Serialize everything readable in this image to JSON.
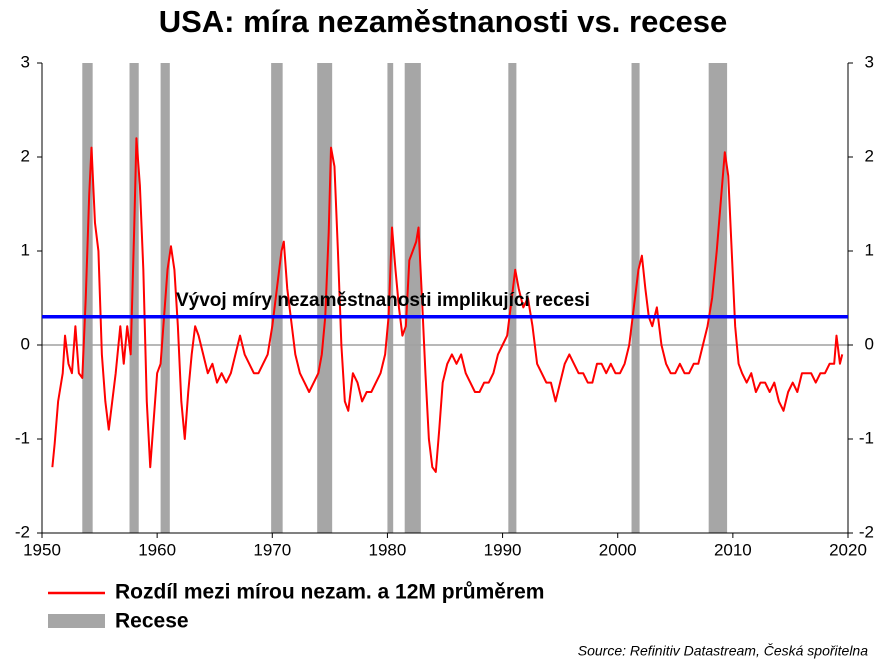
{
  "chart_data": {
    "type": "line",
    "title": "USA: míra nezaměstnanosti vs. recese",
    "source": "Source: Refinitiv Datastream, Česká spořitelna",
    "xlim": [
      1950,
      2020
    ],
    "xticks": [
      1950,
      1960,
      1970,
      1980,
      1990,
      2000,
      2010,
      2020
    ],
    "ylim": [
      -2,
      3
    ],
    "yticks": [
      -2,
      -1,
      0,
      1,
      2,
      3
    ],
    "y2lim": [
      -2,
      3
    ],
    "y2ticks": [
      -2,
      -1,
      0,
      1,
      2,
      3
    ],
    "hline": {
      "value": 0.3,
      "label": "Vývoj míry nezaměstnanosti implikující recesi",
      "color": "#0000ff"
    },
    "recessions": {
      "name": "Recese",
      "color": "#a6a6a6",
      "ranges": [
        [
          1953.5,
          1954.4
        ],
        [
          1957.6,
          1958.4
        ],
        [
          1960.3,
          1961.1
        ],
        [
          1969.9,
          1970.9
        ],
        [
          1973.9,
          1975.2
        ],
        [
          1980.0,
          1980.5
        ],
        [
          1981.5,
          1982.9
        ],
        [
          1990.5,
          1991.2
        ],
        [
          2001.2,
          2001.9
        ],
        [
          2007.9,
          2009.5
        ]
      ]
    },
    "x": [
      1950.9,
      1951.1,
      1951.4,
      1951.8,
      1952.0,
      1952.3,
      1952.6,
      1952.9,
      1953.2,
      1953.5,
      1953.8,
      1954.1,
      1954.3,
      1954.6,
      1954.9,
      1955.2,
      1955.5,
      1955.8,
      1956.1,
      1956.4,
      1956.8,
      1957.1,
      1957.4,
      1957.7,
      1958.0,
      1958.2,
      1958.5,
      1958.8,
      1959.1,
      1959.4,
      1959.7,
      1960.0,
      1960.3,
      1960.6,
      1960.9,
      1961.2,
      1961.5,
      1961.8,
      1962.1,
      1962.4,
      1962.7,
      1963.0,
      1963.3,
      1963.6,
      1964.0,
      1964.4,
      1964.8,
      1965.2,
      1965.6,
      1966.0,
      1966.4,
      1966.8,
      1967.2,
      1967.6,
      1968.0,
      1968.4,
      1968.8,
      1969.2,
      1969.6,
      1970.0,
      1970.4,
      1970.8,
      1971.0,
      1971.3,
      1971.6,
      1972.0,
      1972.4,
      1972.8,
      1973.2,
      1973.6,
      1974.0,
      1974.3,
      1974.6,
      1974.9,
      1975.1,
      1975.4,
      1975.7,
      1976.0,
      1976.3,
      1976.6,
      1977.0,
      1977.4,
      1977.8,
      1978.2,
      1978.6,
      1979.0,
      1979.4,
      1979.8,
      1980.1,
      1980.4,
      1980.7,
      1981.0,
      1981.3,
      1981.6,
      1981.9,
      1982.2,
      1982.5,
      1982.7,
      1983.0,
      1983.3,
      1983.6,
      1983.9,
      1984.2,
      1984.5,
      1984.8,
      1985.2,
      1985.6,
      1986.0,
      1986.4,
      1986.8,
      1987.2,
      1987.6,
      1988.0,
      1988.4,
      1988.8,
      1989.2,
      1989.6,
      1990.0,
      1990.4,
      1990.8,
      1991.1,
      1991.4,
      1991.8,
      1992.2,
      1992.6,
      1993.0,
      1993.4,
      1993.8,
      1994.2,
      1994.6,
      1995.0,
      1995.4,
      1995.8,
      1996.2,
      1996.6,
      1997.0,
      1997.4,
      1997.8,
      1998.2,
      1998.6,
      1999.0,
      1999.4,
      1999.8,
      2000.2,
      2000.6,
      2001.0,
      2001.4,
      2001.8,
      2002.1,
      2002.4,
      2002.7,
      2003.0,
      2003.4,
      2003.8,
      2004.2,
      2004.6,
      2005.0,
      2005.4,
      2005.8,
      2006.2,
      2006.6,
      2007.0,
      2007.4,
      2007.8,
      2008.2,
      2008.6,
      2009.0,
      2009.3,
      2009.6,
      2009.9,
      2010.2,
      2010.5,
      2010.8,
      2011.2,
      2011.6,
      2012.0,
      2012.4,
      2012.8,
      2013.2,
      2013.6,
      2014.0,
      2014.4,
      2014.8,
      2015.2,
      2015.6,
      2016.0,
      2016.4,
      2016.8,
      2017.2,
      2017.6,
      2018.0,
      2018.4,
      2018.8,
      2019.0,
      2019.3,
      2019.5
    ],
    "series": [
      {
        "name": "Rozdíl mezi mírou nezam. a 12M průměrem",
        "color": "#ff0000",
        "values": [
          -1.3,
          -1.05,
          -0.6,
          -0.3,
          0.1,
          -0.2,
          -0.3,
          0.2,
          -0.3,
          -0.35,
          0.5,
          1.6,
          2.1,
          1.3,
          1.0,
          -0.1,
          -0.6,
          -0.9,
          -0.6,
          -0.3,
          0.2,
          -0.2,
          0.2,
          -0.1,
          1.2,
          2.2,
          1.7,
          0.8,
          -0.6,
          -1.3,
          -0.8,
          -0.3,
          -0.2,
          0.3,
          0.8,
          1.05,
          0.8,
          0.2,
          -0.6,
          -1.0,
          -0.5,
          -0.1,
          0.2,
          0.1,
          -0.1,
          -0.3,
          -0.2,
          -0.4,
          -0.3,
          -0.4,
          -0.3,
          -0.1,
          0.1,
          -0.1,
          -0.2,
          -0.3,
          -0.3,
          -0.2,
          -0.1,
          0.2,
          0.6,
          1.0,
          1.1,
          0.6,
          0.3,
          -0.1,
          -0.3,
          -0.4,
          -0.5,
          -0.4,
          -0.3,
          -0.1,
          0.3,
          1.2,
          2.1,
          1.9,
          1.0,
          0.0,
          -0.6,
          -0.7,
          -0.3,
          -0.4,
          -0.6,
          -0.5,
          -0.5,
          -0.4,
          -0.3,
          -0.1,
          0.3,
          1.25,
          0.8,
          0.4,
          0.1,
          0.2,
          0.9,
          1.0,
          1.1,
          1.25,
          0.5,
          -0.3,
          -1.0,
          -1.3,
          -1.35,
          -0.9,
          -0.4,
          -0.2,
          -0.1,
          -0.2,
          -0.1,
          -0.3,
          -0.4,
          -0.5,
          -0.5,
          -0.4,
          -0.4,
          -0.3,
          -0.1,
          0.0,
          0.1,
          0.5,
          0.8,
          0.6,
          0.4,
          0.5,
          0.2,
          -0.2,
          -0.3,
          -0.4,
          -0.4,
          -0.6,
          -0.4,
          -0.2,
          -0.1,
          -0.2,
          -0.3,
          -0.3,
          -0.4,
          -0.4,
          -0.2,
          -0.2,
          -0.3,
          -0.2,
          -0.3,
          -0.3,
          -0.2,
          0.0,
          0.4,
          0.8,
          0.95,
          0.6,
          0.3,
          0.2,
          0.4,
          0.0,
          -0.2,
          -0.3,
          -0.3,
          -0.2,
          -0.3,
          -0.3,
          -0.2,
          -0.2,
          0.0,
          0.2,
          0.5,
          1.0,
          1.6,
          2.05,
          1.8,
          1.0,
          0.2,
          -0.2,
          -0.3,
          -0.4,
          -0.3,
          -0.5,
          -0.4,
          -0.4,
          -0.5,
          -0.4,
          -0.6,
          -0.7,
          -0.5,
          -0.4,
          -0.5,
          -0.3,
          -0.3,
          -0.3,
          -0.4,
          -0.3,
          -0.3,
          -0.2,
          -0.2,
          0.1,
          -0.2,
          -0.1
        ]
      }
    ]
  }
}
